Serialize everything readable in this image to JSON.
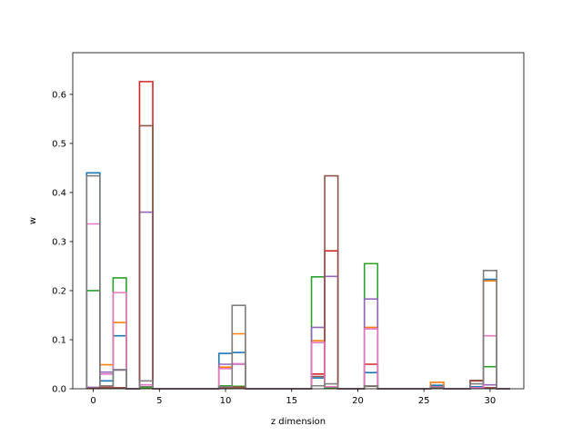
{
  "chart_data": {
    "type": "step",
    "xlabel": "z dimension",
    "ylabel": "w",
    "xlim": [
      -1.55,
      32.55
    ],
    "ylim": [
      0,
      0.685
    ],
    "xticks": [
      0,
      5,
      10,
      15,
      20,
      25,
      30
    ],
    "yticks": [
      0.0,
      0.1,
      0.2,
      0.3,
      0.4,
      0.5,
      0.6
    ],
    "xtick_labels": [
      "0",
      "5",
      "10",
      "15",
      "20",
      "25",
      "30"
    ],
    "ytick_labels": [
      "0.0",
      "0.1",
      "0.2",
      "0.3",
      "0.4",
      "0.5",
      "0.6"
    ],
    "grid": false,
    "x": [
      0,
      1,
      2,
      3,
      4,
      5,
      6,
      7,
      8,
      9,
      10,
      11,
      12,
      13,
      14,
      15,
      16,
      17,
      18,
      19,
      20,
      21,
      22,
      23,
      24,
      25,
      26,
      27,
      28,
      29,
      30,
      31
    ],
    "series": [
      {
        "color": "#1f77b4",
        "values": [
          0.44,
          0.016,
          0.108,
          0,
          0.004,
          0,
          0,
          0,
          0,
          0,
          0.072,
          0.074,
          0,
          0,
          0,
          0,
          0,
          0.022,
          0.003,
          0,
          0,
          0.033,
          0,
          0,
          0,
          0,
          0.007,
          0,
          0,
          0.004,
          0.223,
          0
        ]
      },
      {
        "color": "#ff7f0e",
        "values": [
          0.002,
          0.049,
          0.135,
          0,
          0.003,
          0,
          0,
          0,
          0,
          0,
          0.044,
          0.112,
          0,
          0,
          0,
          0,
          0,
          0.098,
          0.002,
          0,
          0,
          0.125,
          0,
          0,
          0,
          0,
          0.013,
          0,
          0,
          0.002,
          0.22,
          0
        ]
      },
      {
        "color": "#2ca02c",
        "values": [
          0.2,
          0.006,
          0.226,
          0,
          0.002,
          0,
          0,
          0,
          0,
          0,
          0.006,
          0.005,
          0,
          0,
          0,
          0,
          0,
          0.228,
          0.002,
          0,
          0,
          0.255,
          0,
          0,
          0,
          0,
          0.004,
          0,
          0,
          0.002,
          0.045,
          0
        ]
      },
      {
        "color": "#d62728",
        "values": [
          0.001,
          0.003,
          0.002,
          0,
          0.626,
          0,
          0,
          0,
          0,
          0,
          0.002,
          0.003,
          0,
          0,
          0,
          0,
          0,
          0.03,
          0.281,
          0,
          0,
          0.05,
          0,
          0,
          0,
          0,
          0.002,
          0,
          0,
          0.016,
          0.002,
          0
        ]
      },
      {
        "color": "#9467bd",
        "values": [
          0.003,
          0.034,
          0.038,
          0,
          0.36,
          0,
          0,
          0,
          0,
          0,
          0.05,
          0.05,
          0,
          0,
          0,
          0,
          0,
          0.125,
          0.229,
          0,
          0,
          0.183,
          0,
          0,
          0,
          0,
          0.003,
          0,
          0,
          0.002,
          0.008,
          0
        ]
      },
      {
        "color": "#8c564b",
        "values": [
          0.001,
          0.002,
          0.002,
          0,
          0.536,
          0,
          0,
          0,
          0,
          0,
          0.001,
          0.002,
          0,
          0,
          0,
          0,
          0,
          0.025,
          0.434,
          0,
          0,
          0.005,
          0,
          0,
          0,
          0,
          0.002,
          0,
          0,
          0.017,
          0.002,
          0
        ]
      },
      {
        "color": "#e377c2",
        "values": [
          0.336,
          0.03,
          0.196,
          0,
          0.008,
          0,
          0,
          0,
          0,
          0,
          0.041,
          0.051,
          0,
          0,
          0,
          0,
          0,
          0.094,
          0.004,
          0,
          0,
          0.122,
          0,
          0,
          0,
          0,
          0.004,
          0,
          0,
          0.002,
          0.108,
          0
        ]
      },
      {
        "color": "#7f7f7f",
        "values": [
          0.434,
          0.006,
          0.039,
          0,
          0.016,
          0,
          0,
          0,
          0,
          0,
          0.004,
          0.17,
          0,
          0,
          0,
          0,
          0,
          0.006,
          0.01,
          0,
          0,
          0.006,
          0,
          0,
          0,
          0,
          0.003,
          0,
          0,
          0.01,
          0.241,
          0
        ]
      }
    ]
  }
}
